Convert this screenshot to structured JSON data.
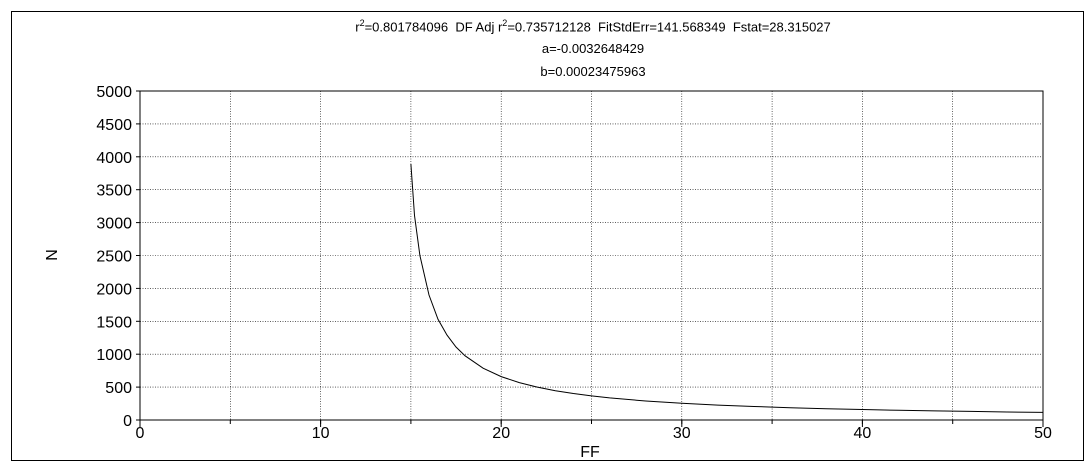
{
  "chart_data": {
    "type": "line",
    "stats_line": {
      "r2_prefix": "r",
      "r2_sup": "2",
      "r2_value": "=0.801784096",
      "adj_prefix": "  DF Adj r",
      "adj_sup": "2",
      "adj_value": "=0.735712128  FitStdErr=141.568349  Fstat=28.315027"
    },
    "coefficients": {
      "a": "a=-0.0032648429",
      "b": "b=0.00023475963"
    },
    "xlabel": "FF",
    "ylabel": "N",
    "xlim": [
      0,
      50
    ],
    "ylim": [
      0,
      5000
    ],
    "x_ticks": [
      "0",
      "10",
      "20",
      "30",
      "40",
      "50"
    ],
    "y_ticks": [
      "0",
      "500",
      "1000",
      "1500",
      "2000",
      "2500",
      "3000",
      "3500",
      "4000",
      "4500",
      "5000"
    ],
    "grid": true,
    "series": [
      {
        "model": {
          "a": -0.0032648429,
          "b": 0.00023475963
        },
        "x": [
          15.0,
          15.2,
          15.5,
          16,
          16.5,
          17,
          17.5,
          18,
          19,
          20,
          21,
          22,
          23,
          24,
          25,
          26,
          28,
          30,
          32,
          34,
          36,
          38,
          40,
          42,
          44,
          46,
          48,
          50
        ],
        "y": [
          3890,
          3110,
          2500,
          1900,
          1530,
          1290,
          1110,
          975,
          787,
          660,
          569,
          500,
          446,
          402,
          366,
          336,
          289,
          254,
          227,
          205,
          187,
          172,
          159,
          148,
          138,
          130,
          122,
          115
        ],
        "color": "#000000"
      }
    ]
  }
}
